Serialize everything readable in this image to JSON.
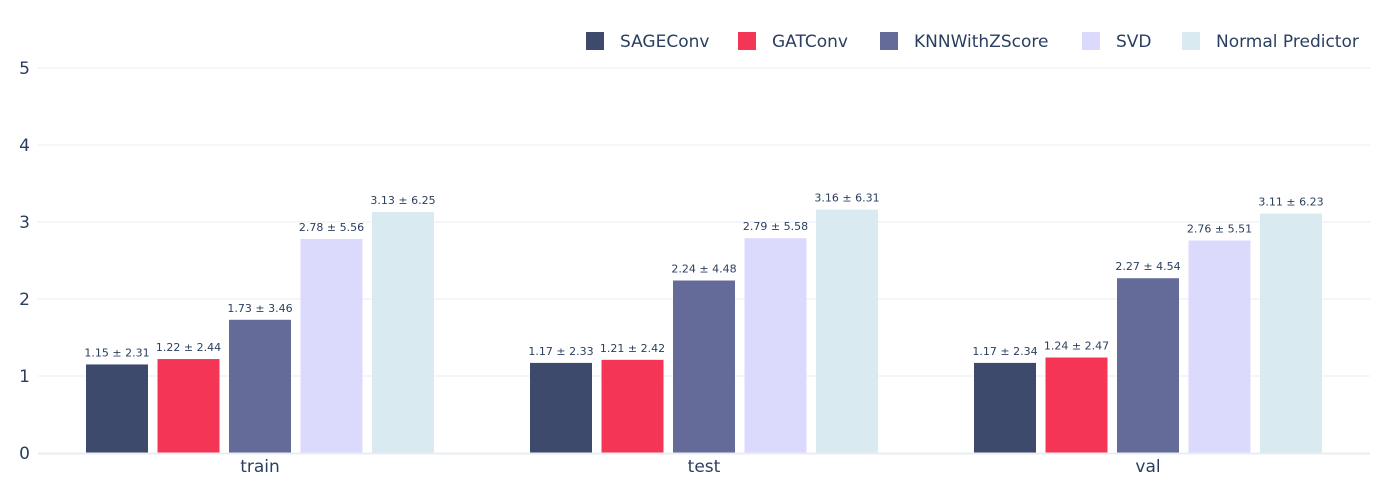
{
  "chart_data": {
    "type": "bar",
    "categories": [
      "train",
      "test",
      "val"
    ],
    "ylim": [
      0,
      5
    ],
    "yticks": [
      0,
      1,
      2,
      3,
      4,
      5
    ],
    "grid": true,
    "legend_position": "top-right",
    "series": [
      {
        "name": "SAGEConv",
        "color": "#3d4a6b",
        "values": [
          1.15,
          1.17,
          1.17
        ],
        "labels": [
          "1.15 ± 2.31",
          "1.17 ± 2.33",
          "1.17 ± 2.34"
        ]
      },
      {
        "name": "GATConv",
        "color": "#f43556",
        "values": [
          1.22,
          1.21,
          1.24
        ],
        "labels": [
          "1.22 ± 2.44",
          "1.21 ± 2.42",
          "1.24 ± 2.47"
        ]
      },
      {
        "name": "KNNWithZScore",
        "color": "#646b99",
        "values": [
          1.73,
          2.24,
          2.27
        ],
        "labels": [
          "1.73 ± 3.46",
          "2.24 ± 4.48",
          "2.27 ± 4.54"
        ]
      },
      {
        "name": "SVD",
        "color": "#dcdafc",
        "values": [
          2.78,
          2.79,
          2.76
        ],
        "labels": [
          "2.78 ± 5.56",
          "2.79 ± 5.58",
          "2.76 ± 5.51"
        ]
      },
      {
        "name": "Normal Predictor",
        "color": "#d9ebf1",
        "values": [
          3.13,
          3.16,
          3.11
        ],
        "labels": [
          "3.13 ± 6.25",
          "3.16 ± 6.31",
          "3.11 ± 6.23"
        ]
      }
    ]
  }
}
